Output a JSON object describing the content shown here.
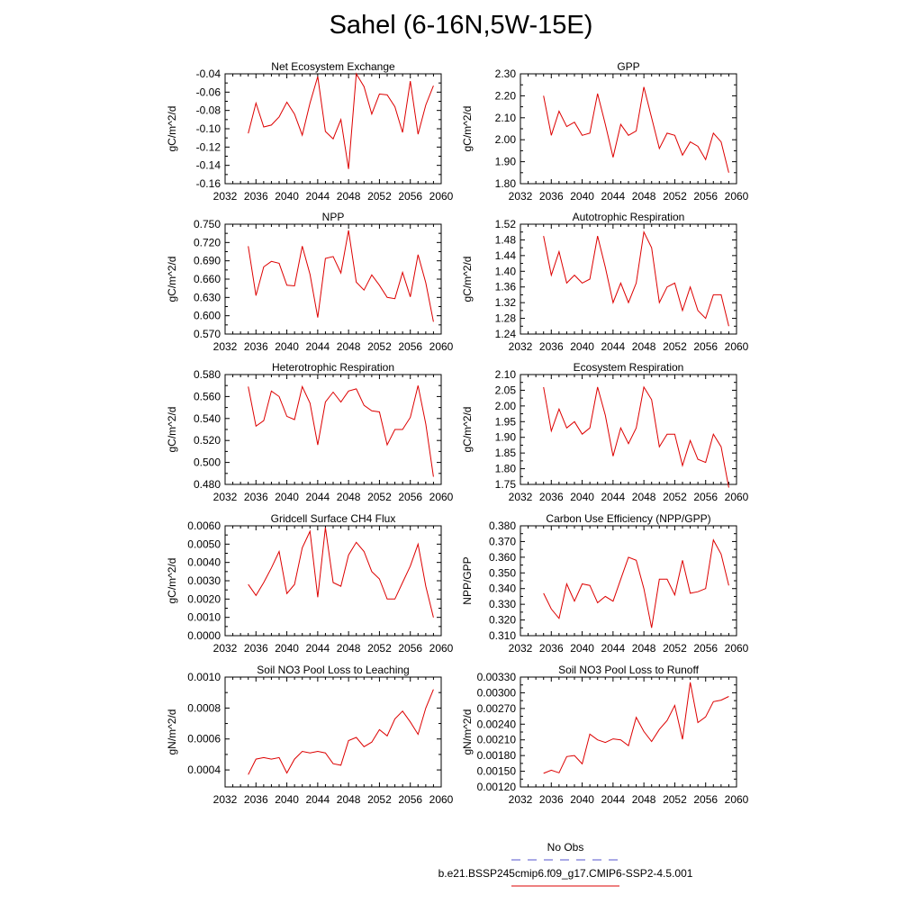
{
  "title": "Sahel (6-16N,5W-15E)",
  "legend": {
    "obs_label": "No Obs",
    "obs_color": "#5555cc",
    "case_label": "b.e21.BSSP245cmip6.f09_g17.CMIP6-SSP2-4.5.001",
    "case_color": "#dd0000"
  },
  "chart_data": [
    {
      "type": "line",
      "title": "Net Ecosystem Exchange",
      "ylabel": "gC/m^2/d",
      "xlabel": "",
      "xlim": [
        2032,
        2060
      ],
      "ylim": [
        -0.16,
        -0.04
      ],
      "xticks": [
        2032,
        2036,
        2040,
        2044,
        2048,
        2052,
        2056,
        2060
      ],
      "yticks": [
        -0.16,
        -0.14,
        -0.12,
        -0.1,
        -0.08,
        -0.06,
        -0.04
      ],
      "ytick_labels": [
        "-0.16",
        "-0.14",
        "-0.12",
        "-0.10",
        "-0.08",
        "-0.06",
        "-0.04"
      ],
      "x": [
        2035,
        2036,
        2037,
        2038,
        2039,
        2040,
        2041,
        2042,
        2043,
        2044,
        2045,
        2046,
        2047,
        2048,
        2049,
        2050,
        2051,
        2052,
        2053,
        2054,
        2055,
        2056,
        2057,
        2058,
        2059
      ],
      "y": [
        -0.105,
        -0.072,
        -0.098,
        -0.096,
        -0.087,
        -0.071,
        -0.084,
        -0.107,
        -0.072,
        -0.043,
        -0.103,
        -0.111,
        -0.09,
        -0.144,
        -0.04,
        -0.054,
        -0.084,
        -0.062,
        -0.063,
        -0.076,
        -0.104,
        -0.048,
        -0.106,
        -0.074,
        -0.053
      ]
    },
    {
      "type": "line",
      "title": "GPP",
      "ylabel": "gC/m^2/d",
      "xlabel": "",
      "xlim": [
        2032,
        2060
      ],
      "ylim": [
        1.8,
        2.3
      ],
      "xticks": [
        2032,
        2036,
        2040,
        2044,
        2048,
        2052,
        2056,
        2060
      ],
      "yticks": [
        1.8,
        1.9,
        2.0,
        2.1,
        2.2,
        2.3
      ],
      "ytick_labels": [
        "1.80",
        "1.90",
        "2.00",
        "2.10",
        "2.20",
        "2.30"
      ],
      "x": [
        2035,
        2036,
        2037,
        2038,
        2039,
        2040,
        2041,
        2042,
        2043,
        2044,
        2045,
        2046,
        2047,
        2048,
        2049,
        2050,
        2051,
        2052,
        2053,
        2054,
        2055,
        2056,
        2057,
        2058,
        2059
      ],
      "y": [
        2.2,
        2.02,
        2.13,
        2.06,
        2.08,
        2.02,
        2.03,
        2.21,
        2.07,
        1.92,
        2.07,
        2.02,
        2.04,
        2.24,
        2.1,
        1.96,
        2.03,
        2.02,
        1.93,
        1.99,
        1.97,
        1.91,
        2.03,
        1.99,
        1.85
      ]
    },
    {
      "type": "line",
      "title": "NPP",
      "ylabel": "gC/m^2/d",
      "xlabel": "",
      "xlim": [
        2032,
        2060
      ],
      "ylim": [
        0.57,
        0.75
      ],
      "xticks": [
        2032,
        2036,
        2040,
        2044,
        2048,
        2052,
        2056,
        2060
      ],
      "yticks": [
        0.57,
        0.6,
        0.63,
        0.66,
        0.69,
        0.72,
        0.75
      ],
      "ytick_labels": [
        "0.570",
        "0.600",
        "0.630",
        "0.660",
        "0.690",
        "0.720",
        "0.750"
      ],
      "x": [
        2035,
        2036,
        2037,
        2038,
        2039,
        2040,
        2041,
        2042,
        2043,
        2044,
        2045,
        2046,
        2047,
        2048,
        2049,
        2050,
        2051,
        2052,
        2053,
        2054,
        2055,
        2056,
        2057,
        2058,
        2059
      ],
      "y": [
        0.714,
        0.633,
        0.68,
        0.689,
        0.686,
        0.65,
        0.649,
        0.714,
        0.668,
        0.597,
        0.694,
        0.697,
        0.67,
        0.74,
        0.655,
        0.642,
        0.667,
        0.65,
        0.63,
        0.628,
        0.671,
        0.631,
        0.7,
        0.654,
        0.59
      ]
    },
    {
      "type": "line",
      "title": "Autotrophic Respiration",
      "ylabel": "gC/m^2/d",
      "xlabel": "",
      "xlim": [
        2032,
        2060
      ],
      "ylim": [
        1.24,
        1.52
      ],
      "xticks": [
        2032,
        2036,
        2040,
        2044,
        2048,
        2052,
        2056,
        2060
      ],
      "yticks": [
        1.24,
        1.28,
        1.32,
        1.36,
        1.4,
        1.44,
        1.48,
        1.52
      ],
      "ytick_labels": [
        "1.24",
        "1.28",
        "1.32",
        "1.36",
        "1.40",
        "1.44",
        "1.48",
        "1.52"
      ],
      "x": [
        2035,
        2036,
        2037,
        2038,
        2039,
        2040,
        2041,
        2042,
        2043,
        2044,
        2045,
        2046,
        2047,
        2048,
        2049,
        2050,
        2051,
        2052,
        2053,
        2054,
        2055,
        2056,
        2057,
        2058,
        2059
      ],
      "y": [
        1.49,
        1.39,
        1.45,
        1.37,
        1.39,
        1.37,
        1.38,
        1.49,
        1.41,
        1.32,
        1.37,
        1.32,
        1.37,
        1.5,
        1.46,
        1.32,
        1.36,
        1.37,
        1.3,
        1.36,
        1.3,
        1.28,
        1.34,
        1.34,
        1.26
      ]
    },
    {
      "type": "line",
      "title": "Heterotrophic Respiration",
      "ylabel": "gC/m^2/d",
      "xlabel": "",
      "xlim": [
        2032,
        2060
      ],
      "ylim": [
        0.48,
        0.58
      ],
      "xticks": [
        2032,
        2036,
        2040,
        2044,
        2048,
        2052,
        2056,
        2060
      ],
      "yticks": [
        0.48,
        0.5,
        0.52,
        0.54,
        0.56,
        0.58
      ],
      "ytick_labels": [
        "0.480",
        "0.500",
        "0.520",
        "0.540",
        "0.560",
        "0.580"
      ],
      "x": [
        2035,
        2036,
        2037,
        2038,
        2039,
        2040,
        2041,
        2042,
        2043,
        2044,
        2045,
        2046,
        2047,
        2048,
        2049,
        2050,
        2051,
        2052,
        2053,
        2054,
        2055,
        2056,
        2057,
        2058,
        2059
      ],
      "y": [
        0.569,
        0.533,
        0.538,
        0.565,
        0.56,
        0.542,
        0.539,
        0.569,
        0.554,
        0.516,
        0.555,
        0.564,
        0.555,
        0.565,
        0.567,
        0.552,
        0.547,
        0.546,
        0.516,
        0.53,
        0.53,
        0.541,
        0.57,
        0.535,
        0.487
      ]
    },
    {
      "type": "line",
      "title": "Ecosystem Respiration",
      "ylabel": "gC/m^2/d",
      "xlabel": "",
      "xlim": [
        2032,
        2060
      ],
      "ylim": [
        1.75,
        2.1
      ],
      "xticks": [
        2032,
        2036,
        2040,
        2044,
        2048,
        2052,
        2056,
        2060
      ],
      "yticks": [
        1.75,
        1.8,
        1.85,
        1.9,
        1.95,
        2.0,
        2.05,
        2.1
      ],
      "ytick_labels": [
        "1.75",
        "1.80",
        "1.85",
        "1.90",
        "1.95",
        "2.00",
        "2.05",
        "2.10"
      ],
      "x": [
        2035,
        2036,
        2037,
        2038,
        2039,
        2040,
        2041,
        2042,
        2043,
        2044,
        2045,
        2046,
        2047,
        2048,
        2049,
        2050,
        2051,
        2052,
        2053,
        2054,
        2055,
        2056,
        2057,
        2058,
        2059
      ],
      "y": [
        2.06,
        1.92,
        1.99,
        1.93,
        1.95,
        1.91,
        1.93,
        2.06,
        1.97,
        1.84,
        1.93,
        1.88,
        1.93,
        2.06,
        2.02,
        1.87,
        1.91,
        1.91,
        1.81,
        1.89,
        1.83,
        1.82,
        1.91,
        1.87,
        1.74
      ]
    },
    {
      "type": "line",
      "title": "Gridcell Surface CH4 Flux",
      "ylabel": "gC/m^2/d",
      "xlabel": "",
      "xlim": [
        2032,
        2060
      ],
      "ylim": [
        0.0,
        0.006
      ],
      "xticks": [
        2032,
        2036,
        2040,
        2044,
        2048,
        2052,
        2056,
        2060
      ],
      "yticks": [
        0.0,
        0.001,
        0.002,
        0.003,
        0.004,
        0.005,
        0.006
      ],
      "ytick_labels": [
        "0.0000",
        "0.0010",
        "0.0020",
        "0.0030",
        "0.0040",
        "0.0050",
        "0.0060"
      ],
      "x": [
        2035,
        2036,
        2037,
        2038,
        2039,
        2040,
        2041,
        2042,
        2043,
        2044,
        2045,
        2046,
        2047,
        2048,
        2049,
        2050,
        2051,
        2052,
        2053,
        2054,
        2055,
        2056,
        2057,
        2058,
        2059
      ],
      "y": [
        0.0028,
        0.0022,
        0.0029,
        0.0037,
        0.0046,
        0.0023,
        0.0028,
        0.0048,
        0.0057,
        0.0021,
        0.0059,
        0.0029,
        0.0027,
        0.0044,
        0.0051,
        0.0046,
        0.0035,
        0.0031,
        0.002,
        0.002,
        0.0029,
        0.0038,
        0.005,
        0.0027,
        0.001
      ]
    },
    {
      "type": "line",
      "title": "Carbon Use Efficiency (NPP/GPP)",
      "ylabel": "NPP/GPP",
      "xlabel": "",
      "xlim": [
        2032,
        2060
      ],
      "ylim": [
        0.31,
        0.38
      ],
      "xticks": [
        2032,
        2036,
        2040,
        2044,
        2048,
        2052,
        2056,
        2060
      ],
      "yticks": [
        0.31,
        0.32,
        0.33,
        0.34,
        0.35,
        0.36,
        0.37,
        0.38
      ],
      "ytick_labels": [
        "0.310",
        "0.320",
        "0.330",
        "0.340",
        "0.350",
        "0.360",
        "0.370",
        "0.380"
      ],
      "x": [
        2035,
        2036,
        2037,
        2038,
        2039,
        2040,
        2041,
        2042,
        2043,
        2044,
        2045,
        2046,
        2047,
        2048,
        2049,
        2050,
        2051,
        2052,
        2053,
        2054,
        2055,
        2056,
        2057,
        2058,
        2059
      ],
      "y": [
        0.337,
        0.327,
        0.321,
        0.343,
        0.332,
        0.343,
        0.342,
        0.331,
        0.335,
        0.332,
        0.346,
        0.36,
        0.358,
        0.34,
        0.315,
        0.346,
        0.346,
        0.336,
        0.358,
        0.337,
        0.338,
        0.34,
        0.371,
        0.362,
        0.342
      ]
    },
    {
      "type": "line",
      "title": "Soil NO3 Pool Loss to Leaching",
      "ylabel": "gN/m^2/d",
      "xlabel": "",
      "xlim": [
        2032,
        2060
      ],
      "ylim": [
        0.00029,
        0.001
      ],
      "xticks": [
        2032,
        2036,
        2040,
        2044,
        2048,
        2052,
        2056,
        2060
      ],
      "yticks": [
        0.0004,
        0.0006,
        0.0008,
        0.001
      ],
      "ytick_labels": [
        "0.0004",
        "0.0006",
        "0.0008",
        "0.0010"
      ],
      "x": [
        2035,
        2036,
        2037,
        2038,
        2039,
        2040,
        2041,
        2042,
        2043,
        2044,
        2045,
        2046,
        2047,
        2048,
        2049,
        2050,
        2051,
        2052,
        2053,
        2054,
        2055,
        2056,
        2057,
        2058,
        2059
      ],
      "y": [
        0.00037,
        0.00047,
        0.00048,
        0.00047,
        0.00048,
        0.00038,
        0.00047,
        0.00052,
        0.00051,
        0.00052,
        0.00051,
        0.00044,
        0.00043,
        0.00059,
        0.00061,
        0.00055,
        0.00058,
        0.00066,
        0.00062,
        0.00073,
        0.00078,
        0.00071,
        0.00063,
        0.0008,
        0.00092
      ]
    },
    {
      "type": "line",
      "title": "Soil NO3 Pool Loss to Runoff",
      "ylabel": "gN/m^2/d",
      "xlabel": "",
      "xlim": [
        2032,
        2060
      ],
      "ylim": [
        0.0012,
        0.0033
      ],
      "xticks": [
        2032,
        2036,
        2040,
        2044,
        2048,
        2052,
        2056,
        2060
      ],
      "yticks": [
        0.0012,
        0.0015,
        0.0018,
        0.0021,
        0.0024,
        0.0027,
        0.003,
        0.0033
      ],
      "ytick_labels": [
        "0.00120",
        "0.00150",
        "0.00180",
        "0.00210",
        "0.00240",
        "0.00270",
        "0.00300",
        "0.00330"
      ],
      "x": [
        2035,
        2036,
        2037,
        2038,
        2039,
        2040,
        2041,
        2042,
        2043,
        2044,
        2045,
        2046,
        2047,
        2048,
        2049,
        2050,
        2051,
        2052,
        2053,
        2054,
        2055,
        2056,
        2057,
        2058,
        2059
      ],
      "y": [
        0.00146,
        0.00152,
        0.00147,
        0.00178,
        0.0018,
        0.00164,
        0.00221,
        0.0021,
        0.00205,
        0.00212,
        0.0021,
        0.00199,
        0.00253,
        0.00226,
        0.00207,
        0.0023,
        0.00247,
        0.00276,
        0.00211,
        0.0032,
        0.00243,
        0.00254,
        0.00283,
        0.00286,
        0.00293
      ]
    }
  ]
}
